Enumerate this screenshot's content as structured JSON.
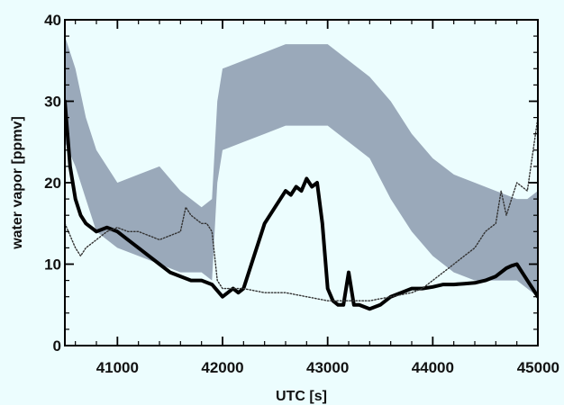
{
  "chart_data": {
    "type": "line",
    "title": "",
    "xlabel": "UTC [s]",
    "ylabel": "water vapor [ppmv]",
    "xlim": [
      40500,
      45000
    ],
    "ylim": [
      0,
      40
    ],
    "x_ticks": [
      41000,
      42000,
      43000,
      44000,
      45000
    ],
    "x_tick_labels": [
      "41000",
      "42000",
      "43000",
      "44000",
      "45000"
    ],
    "y_ticks": [
      0,
      10,
      20,
      30,
      40
    ],
    "y_tick_labels": [
      "0",
      "10",
      "20",
      "30",
      "40"
    ],
    "grid": false,
    "legend": "none",
    "colors": {
      "band": "#9aa9ba",
      "thick": "#000000",
      "dotted": "#333333",
      "background": "#ecfdfe"
    },
    "band": {
      "x": [
        40500,
        40600,
        40700,
        40800,
        41000,
        41200,
        41400,
        41600,
        41800,
        41900,
        41950,
        42000,
        42200,
        42400,
        42600,
        42800,
        43000,
        43200,
        43400,
        43600,
        43800,
        44000,
        44200,
        44400,
        44600,
        44800,
        44900,
        45000
      ],
      "upper": [
        38,
        34,
        28,
        24,
        20,
        21,
        22,
        19,
        17,
        18,
        30,
        34,
        35,
        36,
        37,
        37,
        37,
        35,
        33,
        30,
        26,
        23,
        21,
        20,
        19,
        18,
        18,
        19
      ],
      "lower": [
        25,
        22,
        18,
        14,
        12,
        11,
        10,
        9,
        9,
        8,
        20,
        24,
        25,
        26,
        27,
        27,
        27,
        25,
        23,
        18,
        14,
        11,
        9,
        8,
        8,
        8,
        7,
        6
      ]
    },
    "series": [
      {
        "style": "thick",
        "x": [
          40500,
          40550,
          40600,
          40650,
          40700,
          40800,
          40900,
          41000,
          41100,
          41200,
          41300,
          41400,
          41500,
          41600,
          41700,
          41800,
          41900,
          42000,
          42100,
          42150,
          42200,
          42300,
          42400,
          42500,
          42600,
          42650,
          42700,
          42750,
          42800,
          42850,
          42900,
          42950,
          43000,
          43050,
          43100,
          43150,
          43200,
          43250,
          43300,
          43400,
          43500,
          43600,
          43700,
          43800,
          43900,
          44000,
          44100,
          44200,
          44300,
          44400,
          44500,
          44600,
          44700,
          44750,
          44800,
          44850,
          44900,
          44950,
          45000
        ],
        "y": [
          30,
          22,
          18,
          16,
          15,
          14,
          14.5,
          14,
          13,
          12,
          11,
          10,
          9,
          8.5,
          8,
          8,
          7.5,
          6,
          7,
          6.5,
          7,
          11,
          15,
          17,
          19,
          18.5,
          19.5,
          19,
          20.5,
          19.5,
          20,
          15,
          7,
          5.5,
          5,
          5,
          9,
          5,
          5,
          4.5,
          5,
          6,
          6.5,
          7,
          7,
          7.2,
          7.5,
          7.5,
          7.6,
          7.7,
          8,
          8.5,
          9.5,
          9.8,
          10,
          9,
          8,
          7,
          6
        ]
      },
      {
        "style": "dotted",
        "x": [
          40500,
          40600,
          40650,
          40700,
          40800,
          40900,
          41000,
          41100,
          41200,
          41300,
          41400,
          41500,
          41600,
          41650,
          41700,
          41800,
          41850,
          41900,
          41950,
          42000,
          42200,
          42400,
          42600,
          42800,
          43000,
          43200,
          43400,
          43600,
          43800,
          43900,
          44000,
          44100,
          44200,
          44300,
          44400,
          44500,
          44600,
          44650,
          44700,
          44750,
          44800,
          44900,
          45000
        ],
        "y": [
          15,
          12,
          11,
          12,
          13,
          14,
          14.5,
          14,
          14,
          13.5,
          13,
          13.5,
          14,
          17,
          16,
          15,
          15,
          14,
          8,
          7,
          7,
          6.5,
          6.5,
          6,
          5.5,
          5.5,
          5.5,
          6,
          6.5,
          7,
          8,
          9,
          10,
          11,
          12,
          14,
          15,
          19,
          16,
          18,
          20,
          19,
          28
        ]
      }
    ]
  }
}
